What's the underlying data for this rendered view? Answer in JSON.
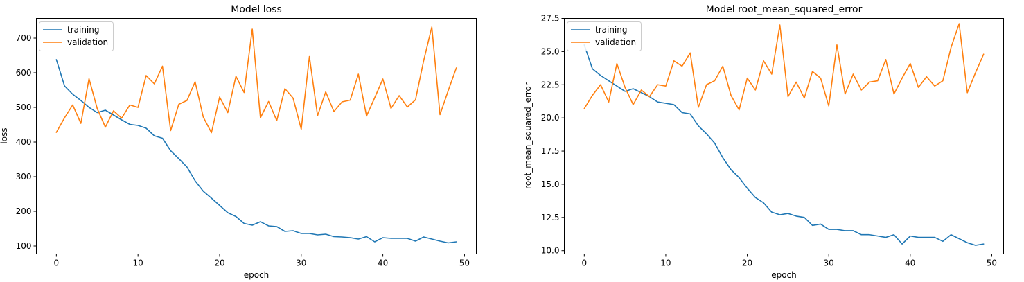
{
  "chart_data": [
    {
      "type": "line",
      "title": "Model loss",
      "xlabel": "epoch",
      "ylabel": "loss",
      "xlim": [
        -2.45,
        51.45
      ],
      "ylim": [
        77,
        757
      ],
      "xticks": [
        0,
        10,
        20,
        30,
        40,
        50
      ],
      "yticks": [
        100,
        200,
        300,
        400,
        500,
        600,
        700
      ],
      "legend_position": "top-left",
      "x": [
        0,
        1,
        2,
        3,
        4,
        5,
        6,
        7,
        8,
        9,
        10,
        11,
        12,
        13,
        14,
        15,
        16,
        17,
        18,
        19,
        20,
        21,
        22,
        23,
        24,
        25,
        26,
        27,
        28,
        29,
        30,
        31,
        32,
        33,
        34,
        35,
        36,
        37,
        38,
        39,
        40,
        41,
        42,
        43,
        44,
        45,
        46,
        47,
        48,
        49
      ],
      "series": [
        {
          "name": "training",
          "color": "#1f77b4",
          "values": [
            638,
            562,
            538,
            520,
            500,
            485,
            492,
            478,
            464,
            451,
            448,
            440,
            418,
            411,
            375,
            352,
            328,
            288,
            258,
            238,
            217,
            196,
            185,
            165,
            160,
            170,
            158,
            156,
            142,
            144,
            136,
            136,
            132,
            134,
            127,
            126,
            124,
            120,
            127,
            112,
            124,
            122,
            122,
            122,
            114,
            126,
            120,
            114,
            109,
            112
          ]
        },
        {
          "name": "validation",
          "color": "#ff7f0e",
          "values": [
            428,
            470,
            507,
            454,
            583,
            497,
            443,
            490,
            469,
            507,
            500,
            592,
            568,
            619,
            433,
            509,
            520,
            574,
            472,
            427,
            530,
            485,
            590,
            543,
            726,
            470,
            517,
            462,
            554,
            527,
            437,
            647,
            476,
            545,
            488,
            516,
            521,
            596,
            475,
            528,
            582,
            497,
            534,
            501,
            522,
            635,
            732,
            479,
            548,
            614
          ]
        }
      ]
    },
    {
      "type": "line",
      "title": "Model root_mean_squared_error",
      "xlabel": "epoch",
      "ylabel": "root_mean_squared_error",
      "xlim": [
        -2.45,
        51.45
      ],
      "ylim": [
        9.75,
        27.5
      ],
      "xticks": [
        0,
        10,
        20,
        30,
        40,
        50
      ],
      "yticks": [
        10.0,
        12.5,
        15.0,
        17.5,
        20.0,
        22.5,
        25.0,
        27.5
      ],
      "legend_position": "top-left",
      "x": [
        0,
        1,
        2,
        3,
        4,
        5,
        6,
        7,
        8,
        9,
        10,
        11,
        12,
        13,
        14,
        15,
        16,
        17,
        18,
        19,
        20,
        21,
        22,
        23,
        24,
        25,
        26,
        27,
        28,
        29,
        30,
        31,
        32,
        33,
        34,
        35,
        36,
        37,
        38,
        39,
        40,
        41,
        42,
        43,
        44,
        45,
        46,
        47,
        48,
        49
      ],
      "series": [
        {
          "name": "training",
          "color": "#1f77b4",
          "values": [
            25.5,
            23.7,
            23.2,
            22.8,
            22.4,
            22.0,
            22.2,
            21.9,
            21.6,
            21.2,
            21.1,
            21.0,
            20.4,
            20.3,
            19.4,
            18.8,
            18.1,
            17.0,
            16.1,
            15.5,
            14.7,
            14.0,
            13.6,
            12.9,
            12.7,
            12.8,
            12.6,
            12.5,
            11.9,
            12.0,
            11.6,
            11.6,
            11.5,
            11.5,
            11.2,
            11.2,
            11.1,
            11.0,
            11.2,
            10.5,
            11.1,
            11.0,
            11.0,
            11.0,
            10.7,
            11.2,
            10.9,
            10.6,
            10.4,
            10.5
          ]
        },
        {
          "name": "validation",
          "color": "#ff7f0e",
          "values": [
            20.7,
            21.7,
            22.5,
            21.2,
            24.1,
            22.3,
            21.0,
            22.1,
            21.6,
            22.5,
            22.4,
            24.3,
            23.9,
            24.9,
            20.8,
            22.5,
            22.8,
            23.9,
            21.7,
            20.6,
            23.0,
            22.1,
            24.3,
            23.3,
            27.0,
            21.6,
            22.7,
            21.5,
            23.5,
            23.0,
            20.9,
            25.5,
            21.8,
            23.3,
            22.1,
            22.7,
            22.8,
            24.4,
            21.8,
            23.0,
            24.1,
            22.3,
            23.1,
            22.4,
            22.8,
            25.3,
            27.1,
            21.9,
            23.4,
            24.8
          ]
        }
      ]
    }
  ]
}
